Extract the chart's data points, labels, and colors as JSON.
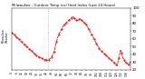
{
  "title": "Milwaukee - Outdoor Temp (vs) Heat Index (Last 24 Hours)",
  "background_color": "#ffffff",
  "plot_bg_color": "#ffffff",
  "line_color": "#ff0000",
  "vline_color": "#999999",
  "ylim": [
    20,
    100
  ],
  "yticks": [
    20,
    30,
    40,
    50,
    60,
    70,
    80,
    90,
    100
  ],
  "ytick_labels": [
    "20",
    "30",
    "40",
    "50",
    "60",
    "70",
    "80",
    "90",
    "100"
  ],
  "vline_x": 44,
  "x_values": [
    0,
    1,
    2,
    3,
    4,
    5,
    6,
    7,
    8,
    9,
    10,
    11,
    12,
    13,
    14,
    15,
    16,
    17,
    18,
    19,
    20,
    21,
    22,
    23,
    24,
    25,
    26,
    27,
    28,
    29,
    30,
    31,
    32,
    33,
    34,
    35,
    36,
    37,
    38,
    39,
    40,
    41,
    42,
    43,
    44,
    45,
    46,
    47,
    48,
    49,
    50,
    51,
    52,
    53,
    54,
    55,
    56,
    57,
    58,
    59,
    60,
    61,
    62,
    63,
    64,
    65,
    66,
    67,
    68,
    69,
    70,
    71,
    72,
    73,
    74,
    75,
    76,
    77,
    78,
    79,
    80,
    81,
    82,
    83,
    84,
    85,
    86,
    87,
    88,
    89,
    90,
    91,
    92,
    93,
    94,
    95,
    96,
    97,
    98,
    99,
    100,
    101,
    102,
    103,
    104,
    105,
    106,
    107,
    108,
    109,
    110,
    111,
    112,
    113,
    114,
    115,
    116,
    117,
    118,
    119,
    120,
    121,
    122,
    123,
    124,
    125,
    126,
    127,
    128,
    129,
    130,
    131,
    132,
    133,
    134,
    135,
    136,
    137,
    138,
    139,
    140,
    141,
    142,
    143
  ],
  "y_values": [
    68,
    67,
    66,
    65,
    64,
    63,
    62,
    61,
    60,
    59,
    58,
    57,
    56,
    55,
    54,
    53,
    52,
    51,
    50,
    49,
    48,
    47,
    46,
    45,
    44,
    43,
    42,
    41,
    40,
    39,
    38,
    37,
    37,
    36,
    36,
    35,
    35,
    34,
    34,
    33,
    33,
    33,
    32,
    32,
    32,
    33,
    34,
    35,
    36,
    38,
    40,
    43,
    47,
    52,
    56,
    60,
    63,
    66,
    68,
    70,
    72,
    74,
    76,
    78,
    79,
    80,
    81,
    82,
    83,
    84,
    85,
    86,
    87,
    88,
    89,
    87,
    86,
    85,
    84,
    83,
    84,
    85,
    86,
    85,
    84,
    83,
    82,
    81,
    80,
    79,
    78,
    76,
    74,
    72,
    70,
    68,
    66,
    64,
    62,
    60,
    58,
    56,
    54,
    52,
    50,
    48,
    46,
    45,
    44,
    43,
    42,
    41,
    40,
    39,
    38,
    37,
    36,
    35,
    34,
    33,
    32,
    31,
    30,
    29,
    28,
    27,
    26,
    25,
    30,
    35,
    40,
    45,
    42,
    38,
    35,
    33,
    31,
    30,
    29,
    28,
    27,
    26,
    28,
    30
  ]
}
